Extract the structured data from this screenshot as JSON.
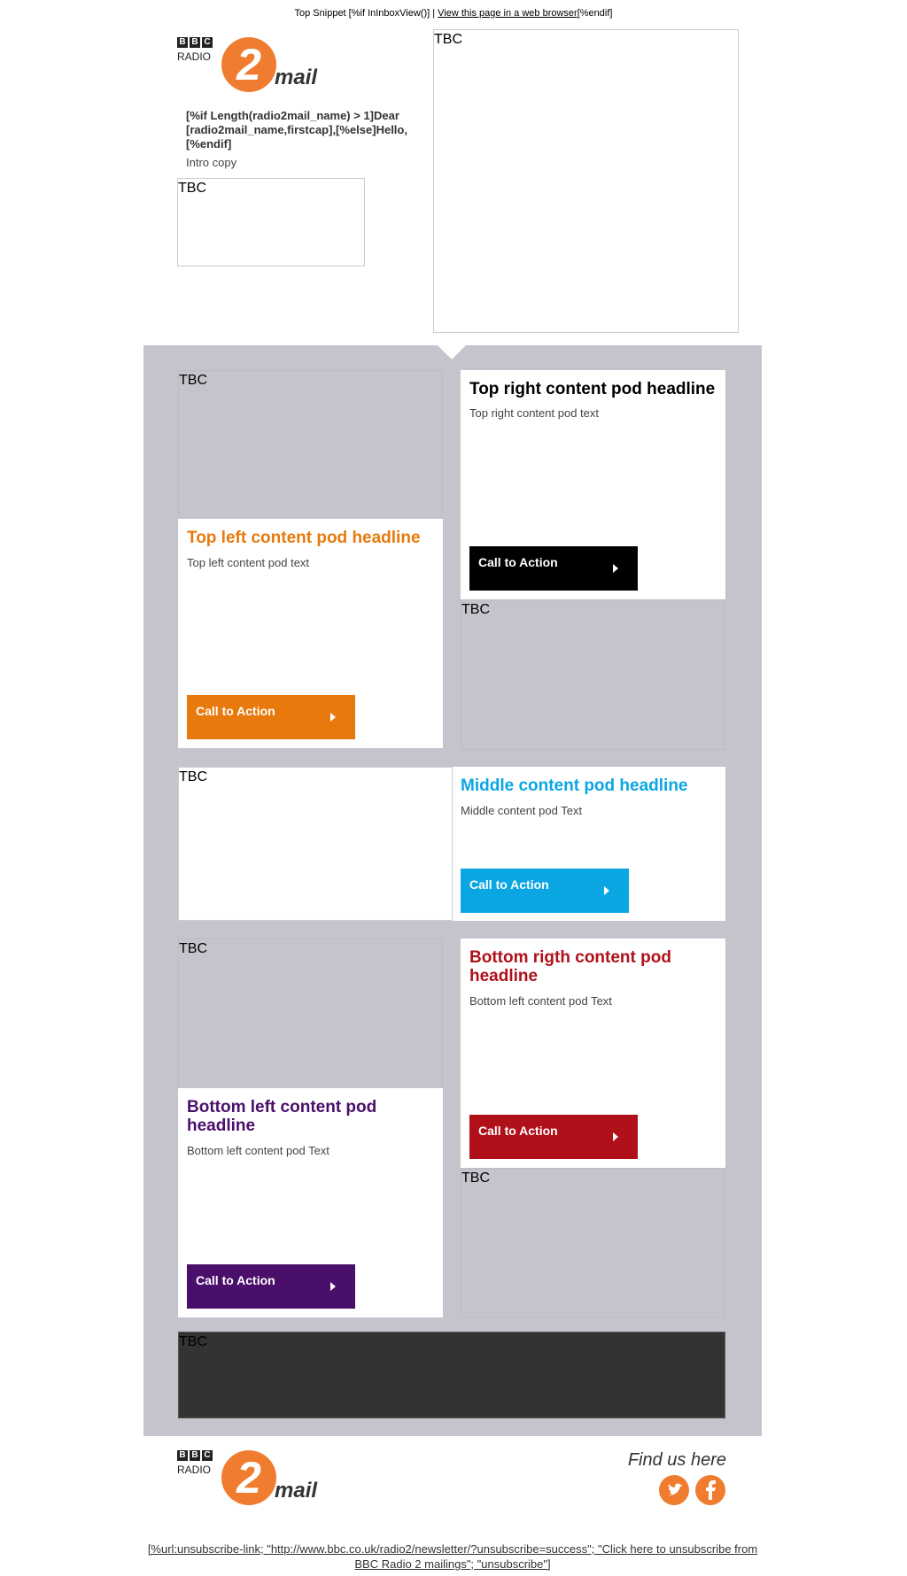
{
  "top_snippet": {
    "before": "Top Snippet [%if InInboxView()] | ",
    "link": "View this page in a web browser",
    "after": "[%endif]"
  },
  "logo": {
    "bbc": [
      "B",
      "B",
      "C"
    ],
    "radio": "RADIO",
    "number": "2",
    "mail": "mail"
  },
  "header": {
    "greeting": "[%if Length(radio2mail_name) > 1]Dear [radio2mail_name,firstcap],[%else]Hello, [%endif]",
    "intro": "Intro copy",
    "tbc_small": "TBC",
    "tbc_large": "TBC"
  },
  "pods": {
    "top_left": {
      "tbc": "TBC",
      "headline": "Top left content pod headline",
      "text": "Top left content pod text",
      "cta": "Call to Action"
    },
    "top_right": {
      "tbc": "TBC",
      "headline": "Top right content pod headline",
      "text": "Top right content pod text",
      "cta": "Call to Action"
    },
    "middle": {
      "tbc": "TBC",
      "headline": "Middle content pod headline",
      "text": "Middle content pod Text",
      "cta": "Call to Action"
    },
    "bottom_left": {
      "tbc": "TBC",
      "headline": "Bottom left content pod headline",
      "text": "Bottom left content pod Text",
      "cta": "Call to Action"
    },
    "bottom_right": {
      "tbc": "TBC",
      "headline": "Bottom rigth content pod headline",
      "text": "Bottom left content pod Text",
      "cta": "Call to Action"
    },
    "banner": {
      "tbc": "TBC"
    }
  },
  "footer": {
    "find_us": "Find us here",
    "unsubscribe": "[%url:unsubscribe-link; \"http://www.bbc.co.uk/radio2/newsletter/?unsubscribe=success\"; \"Click here to unsubscribe from BBC Radio 2 mailings\"; \"unsubscribe\"]"
  }
}
